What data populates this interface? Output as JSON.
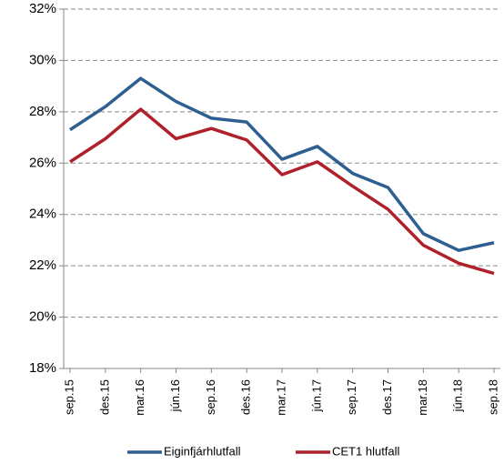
{
  "chart_data": {
    "type": "line",
    "categories": [
      "sep.15",
      "des.15",
      "mar.16",
      "jún.16",
      "sep.16",
      "des.16",
      "mar.17",
      "jún.17",
      "sep.17",
      "des.17",
      "mar.18",
      "jún.18",
      "sep.18"
    ],
    "series": [
      {
        "name": "Eiginfjárhlutfall",
        "color": "#2e5f91",
        "values": [
          27.3,
          28.2,
          29.3,
          28.4,
          27.75,
          27.6,
          26.15,
          26.65,
          25.6,
          25.05,
          23.25,
          22.6,
          22.9
        ]
      },
      {
        "name": "CET1 hlutfall",
        "color": "#b0202b",
        "values": [
          26.05,
          26.95,
          28.1,
          26.95,
          27.35,
          26.9,
          25.55,
          26.05,
          25.1,
          24.2,
          22.8,
          22.1,
          21.7
        ]
      }
    ],
    "ylim": [
      18,
      32
    ],
    "yticks": [
      {
        "value": 18,
        "label": "18%"
      },
      {
        "value": 20,
        "label": "20%"
      },
      {
        "value": 22,
        "label": "22%"
      },
      {
        "value": 24,
        "label": "24%"
      },
      {
        "value": 26,
        "label": "26%"
      },
      {
        "value": 28,
        "label": "28%"
      },
      {
        "value": 30,
        "label": "30%"
      },
      {
        "value": 32,
        "label": "32%"
      }
    ],
    "grid": true,
    "legend": "bottom"
  }
}
